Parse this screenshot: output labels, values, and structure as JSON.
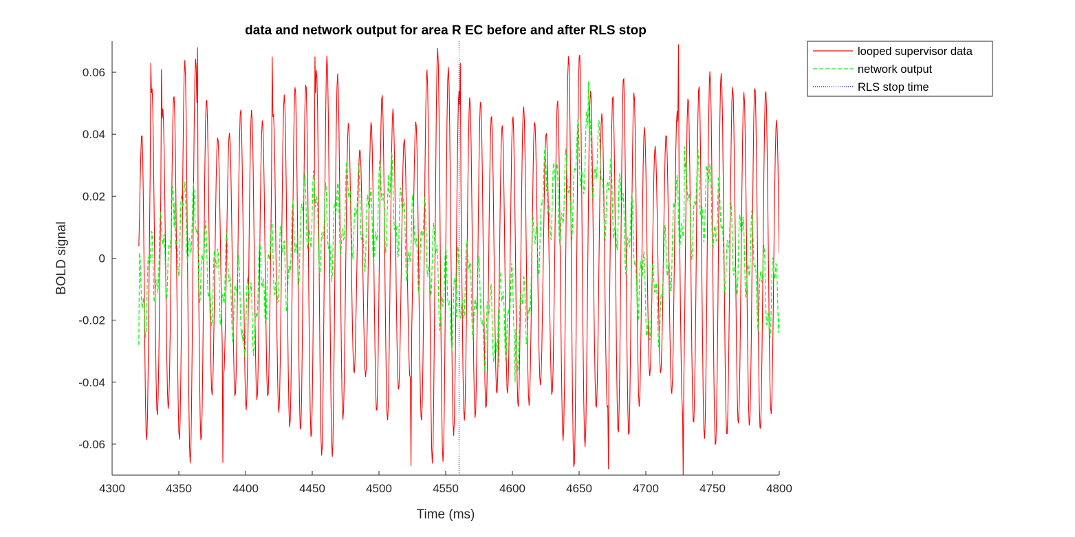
{
  "chart_data": {
    "type": "line",
    "title": "data and network output for area R EC before and after RLS stop",
    "xlabel": "Time (ms)",
    "ylabel": "BOLD signal",
    "xlim": [
      4300,
      4800
    ],
    "ylim": [
      -0.07,
      0.07
    ],
    "xticks": [
      4300,
      4350,
      4400,
      4450,
      4500,
      4550,
      4600,
      4650,
      4700,
      4750,
      4800
    ],
    "xtick_labels": [
      "4300",
      "4350",
      "4400",
      "4450",
      "4500",
      "4550",
      "4600",
      "4650",
      "4700",
      "4750",
      "4800"
    ],
    "yticks": [
      -0.06,
      -0.04,
      -0.02,
      0,
      0.02,
      0.04,
      0.06
    ],
    "ytick_labels": [
      "-0.06",
      "-0.04",
      "-0.02",
      "0",
      "0.02",
      "0.04",
      "0.06"
    ],
    "grid": false,
    "legend_position": "outside-top-right",
    "series": [
      {
        "name": "looped supervisor data",
        "style": "solid",
        "color": "#ff0000",
        "t_start": 4320,
        "t_end": 4800,
        "oscillation_period_ms": 8.2,
        "approx_amplitude": 0.062,
        "envelope_peaks": [
          {
            "t": 4329,
            "y": 0.063
          },
          {
            "t": 4337,
            "y": 0.061
          },
          {
            "t": 4365,
            "y": 0.068
          },
          {
            "t": 4381,
            "y": -0.066
          },
          {
            "t": 4419,
            "y": 0.065
          },
          {
            "t": 4451,
            "y": 0.065
          },
          {
            "t": 4527,
            "y": -0.067
          },
          {
            "t": 4562,
            "y": 0.063
          },
          {
            "t": 4672,
            "y": -0.068
          },
          {
            "t": 4726,
            "y": 0.069
          },
          {
            "t": 4728,
            "y": -0.07
          }
        ]
      },
      {
        "name": "network output",
        "style": "dashed",
        "color": "#00ff00",
        "t_start": 4320,
        "t_end": 4800,
        "approx_range": [
          -0.04,
          0.057
        ],
        "notable_points": [
          {
            "t": 4320,
            "y": -0.028
          },
          {
            "t": 4347,
            "y": 0.018
          },
          {
            "t": 4398,
            "y": -0.027
          },
          {
            "t": 4453,
            "y": 0.02
          },
          {
            "t": 4507,
            "y": 0.027
          },
          {
            "t": 4558,
            "y": -0.019
          },
          {
            "t": 4590,
            "y": -0.035
          },
          {
            "t": 4602,
            "y": -0.04
          },
          {
            "t": 4626,
            "y": 0.03
          },
          {
            "t": 4657,
            "y": 0.057
          },
          {
            "t": 4710,
            "y": -0.025
          },
          {
            "t": 4729,
            "y": 0.036
          },
          {
            "t": 4800,
            "y": -0.018
          }
        ]
      },
      {
        "name": "RLS stop time",
        "style": "dotted",
        "color": "#0000ff",
        "x": 4560
      }
    ]
  }
}
